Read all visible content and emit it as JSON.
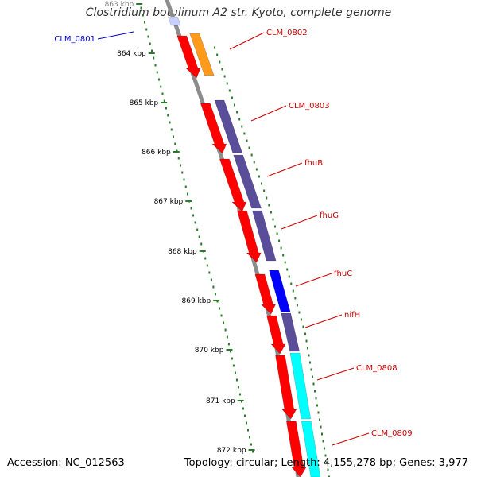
{
  "title": "Clostridium botulinum A2 str. Kyoto, complete genome",
  "accession_text": "Accession: NC_012563",
  "topology_text": "Topology: circular; Length: 4,155,278 bp; Genes: 3,977",
  "colors": {
    "backbone": "#8c8c8c",
    "ticks": "#2a7a2a",
    "label_red": "#cc0000",
    "label_blue": "#0000cc",
    "cds": "#ff0000",
    "orange": "#ff9a1a",
    "purple": "#5a4e9a",
    "blue": "#0000ff",
    "cyan": "#00ffff"
  },
  "kbp_ticks": [
    "863 kbp",
    "864 kbp",
    "865 kbp",
    "866 kbp",
    "867 kbp",
    "868 kbp",
    "869 kbp",
    "870 kbp",
    "871 kbp",
    "872 kbp"
  ],
  "genes": [
    {
      "label": "CLM_0801",
      "side": "left",
      "color": "label_blue"
    },
    {
      "label": "CLM_0802",
      "side": "right",
      "color": "label_red"
    },
    {
      "label": "CLM_0803",
      "side": "right",
      "color": "label_red"
    },
    {
      "label": "fhuB",
      "side": "right",
      "color": "label_red"
    },
    {
      "label": "fhuG",
      "side": "right",
      "color": "label_red"
    },
    {
      "label": "fhuC",
      "side": "right",
      "color": "label_red"
    },
    {
      "label": "nifH",
      "side": "right",
      "color": "label_red"
    },
    {
      "label": "CLM_0808",
      "side": "right",
      "color": "label_red"
    },
    {
      "label": "CLM_0809",
      "side": "right",
      "color": "label_red"
    }
  ]
}
